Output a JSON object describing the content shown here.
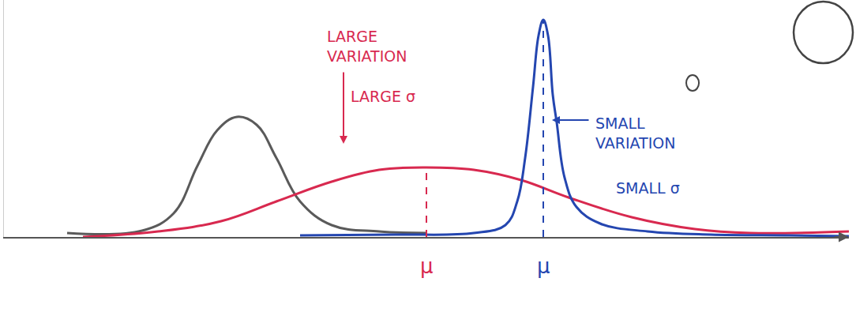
{
  "chart_data": {
    "type": "line",
    "xlim": [
      0,
      107
    ],
    "ylim": [
      0,
      30
    ],
    "xticks": [],
    "yticks": [],
    "tick_labels": false,
    "grid": false,
    "series": [
      {
        "color": "#5a5a5a",
        "line_style": "solid",
        "x": [
          8,
          17.5,
          21.5,
          24.5,
          27,
          29.5,
          32,
          34.5,
          37.5,
          41.5,
          47.5,
          53.5
        ],
        "values": [
          0.5,
          0.8,
          3,
          9,
          13.5,
          15.2,
          14.2,
          10,
          4.5,
          1.5,
          0.7,
          0.5
        ]
      },
      {
        "color": "#d8294f",
        "line_style": "solid",
        "x": [
          10,
          19.5,
          27.5,
          34.5,
          41.5,
          47.5,
          53.5,
          59.5,
          65.5,
          71.5,
          79.5,
          87.5,
          94.5,
          107
        ],
        "values": [
          0,
          0.7,
          2,
          4.5,
          7,
          8.5,
          8.8,
          8.5,
          7.2,
          5,
          2.5,
          1,
          0.5,
          0.7
        ],
        "mu": {
          "value": 53.5,
          "label": "μ"
        }
      },
      {
        "color": "#2446b0",
        "line_style": "solid",
        "x": [
          37.5,
          49.5,
          59.5,
          63.5,
          65,
          66,
          67,
          67.7,
          68.3,
          68.9,
          69.5,
          70,
          71,
          72.5,
          75.5,
          81.5,
          89.5,
          99.5,
          107
        ],
        "values": [
          0.2,
          0.3,
          0.5,
          1.5,
          4.5,
          10,
          19,
          25.5,
          27.5,
          25.5,
          18,
          14.5,
          7.5,
          3.8,
          1.7,
          0.7,
          0.3,
          0.2,
          0.1
        ],
        "mu": {
          "value": 68.3,
          "label": "μ"
        }
      }
    ],
    "annotations": [
      {
        "text": [
          "LARGE",
          "VARIATION"
        ],
        "x": 46,
        "y": 24.2,
        "color": "#d8294f"
      },
      {
        "text": [
          "LARGE σ"
        ],
        "x": 48,
        "y": 17.8,
        "color": "#d8294f"
      },
      {
        "text": [
          "SMALL",
          "VARIATION"
        ],
        "x": 80,
        "y": 13.2,
        "color": "#2446b0"
      },
      {
        "text": [
          "SMALL σ"
        ],
        "x": 81.5,
        "y": 6.2,
        "color": "#2446b0"
      }
    ]
  }
}
